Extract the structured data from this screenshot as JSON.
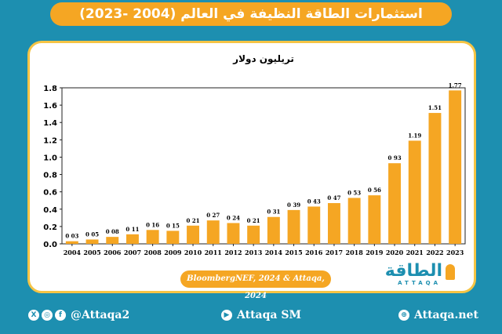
{
  "title": "استثمارات الطاقة النظيفة في العالم (2004 -2023)",
  "source": "BloombergNEF, 2024 & Attaqa, 2024",
  "logo": {
    "arabic": "الطاقة",
    "latin": "ATTAQA"
  },
  "footer": {
    "social_handle": "@Attaqa2",
    "youtube_handle": "Attaqa SM",
    "website": "Attaqa.net"
  },
  "colors": {
    "bar": "#f5a623",
    "background": "#1d8fb0",
    "accent": "#f5a623",
    "card_border": "#f5c445"
  },
  "chart_data": {
    "type": "bar",
    "title": "تريليون دولار",
    "categories": [
      "2004",
      "2005",
      "2006",
      "2007",
      "2008",
      "2009",
      "2010",
      "2011",
      "2012",
      "2013",
      "2014",
      "2015",
      "2016",
      "2017",
      "2018",
      "2019",
      "2020",
      "2021",
      "2022",
      "2023"
    ],
    "values": [
      0.03,
      0.05,
      0.08,
      0.11,
      0.16,
      0.15,
      0.21,
      0.27,
      0.24,
      0.21,
      0.31,
      0.39,
      0.43,
      0.47,
      0.53,
      0.56,
      0.93,
      1.19,
      1.51,
      1.77
    ],
    "ylim": [
      0,
      1.8
    ],
    "yticks": [
      "0.0",
      "0.2",
      "0.4",
      "0.6",
      "0.8",
      "1.0",
      "1.2",
      "1.4",
      "1.6",
      "1.8"
    ],
    "xlabel": "",
    "ylabel": "",
    "grid": false
  }
}
